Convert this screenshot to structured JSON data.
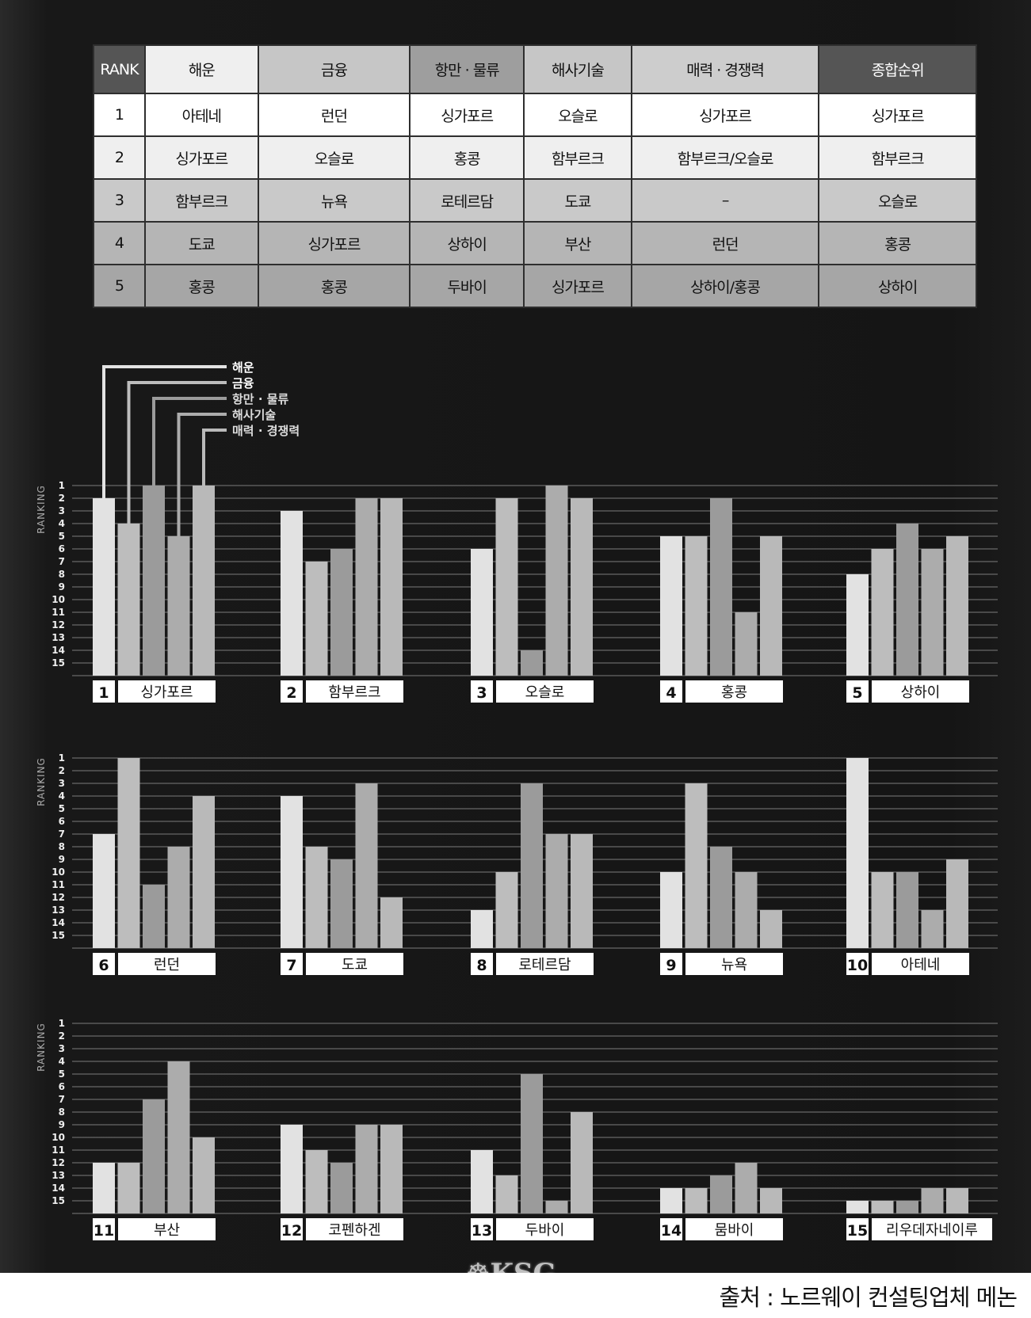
{
  "table": {
    "headers": [
      "RANK",
      "해운",
      "금융",
      "항만 · 물류",
      "해사기술",
      "매력 · 경쟁력",
      "종합순위"
    ],
    "header_colors": [
      "#555555",
      "#efefef",
      "#c6c6c6",
      "#9e9e9e",
      "#c6c6c6",
      "#cdcdcd",
      "#555555"
    ],
    "rows": [
      [
        "1",
        "아테네",
        "런던",
        "싱가포르",
        "오슬로",
        "싱가포르",
        "싱가포르"
      ],
      [
        "2",
        "싱가포르",
        "오슬로",
        "홍콩",
        "함부르크",
        "함부르크/오슬로",
        "함부르크"
      ],
      [
        "3",
        "함부르크",
        "뉴욕",
        "로테르담",
        "도쿄",
        "–",
        "오슬로"
      ],
      [
        "4",
        "도쿄",
        "싱가포르",
        "상하이",
        "부산",
        "런던",
        "홍콩"
      ],
      [
        "5",
        "홍콩",
        "홍콩",
        "두바이",
        "싱가포르",
        "상하이/홍콩",
        "상하이"
      ]
    ],
    "row_colors": [
      "#ffffff",
      "#efefef",
      "#c9c9c9",
      "#b5b5b5",
      "#a6a6a6"
    ]
  },
  "chart_data": {
    "type": "bar",
    "ylabel": "RANKING",
    "ylim": [
      15,
      1
    ],
    "yticks": [
      "1",
      "2",
      "3",
      "4",
      "5",
      "6",
      "7",
      "8",
      "9",
      "10",
      "11",
      "12",
      "13",
      "14",
      "15"
    ],
    "grid": true,
    "legend": [
      "해운",
      "금융",
      "항만 · 물류",
      "해사기술",
      "매력 · 경쟁력"
    ],
    "series_colors": [
      "#e2e2e2",
      "#bdbdbd",
      "#9b9b9b",
      "#acacac",
      "#b9b9b9"
    ],
    "cities": [
      {
        "rank": "1",
        "name": "싱가포르",
        "values": [
          2,
          4,
          1,
          5,
          1
        ]
      },
      {
        "rank": "2",
        "name": "함부르크",
        "values": [
          3,
          7,
          6,
          2,
          2
        ]
      },
      {
        "rank": "3",
        "name": "오슬로",
        "values": [
          6,
          2,
          14,
          1,
          2
        ]
      },
      {
        "rank": "4",
        "name": "홍콩",
        "values": [
          5,
          5,
          2,
          11,
          5
        ]
      },
      {
        "rank": "5",
        "name": "상하이",
        "values": [
          8,
          6,
          4,
          6,
          5
        ]
      },
      {
        "rank": "6",
        "name": "런던",
        "values": [
          7,
          1,
          11,
          8,
          4
        ]
      },
      {
        "rank": "7",
        "name": "도쿄",
        "values": [
          4,
          8,
          9,
          3,
          12
        ]
      },
      {
        "rank": "8",
        "name": "로테르담",
        "values": [
          13,
          10,
          3,
          7,
          7
        ]
      },
      {
        "rank": "9",
        "name": "뉴욕",
        "values": [
          10,
          3,
          8,
          10,
          13
        ]
      },
      {
        "rank": "10",
        "name": "아테네",
        "values": [
          1,
          10,
          10,
          13,
          9
        ]
      },
      {
        "rank": "11",
        "name": "부산",
        "values": [
          12,
          12,
          7,
          4,
          10
        ]
      },
      {
        "rank": "12",
        "name": "코펜하겐",
        "values": [
          9,
          11,
          12,
          9,
          9
        ]
      },
      {
        "rank": "13",
        "name": "두바이",
        "values": [
          11,
          13,
          5,
          15,
          8
        ]
      },
      {
        "rank": "14",
        "name": "뭄바이",
        "values": [
          14,
          14,
          13,
          12,
          14
        ]
      },
      {
        "rank": "15",
        "name": "리우데자네이루",
        "values": [
          15,
          15,
          15,
          14,
          14
        ]
      }
    ]
  },
  "footer": {
    "source": "출처 : 노르웨이 컨설팅업체 메논",
    "logo": "KSG"
  }
}
